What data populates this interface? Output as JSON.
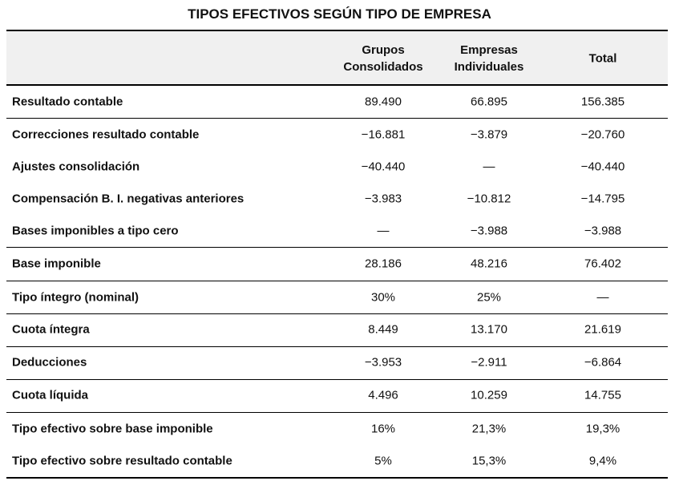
{
  "title": "TIPOS EFECTIVOS SEGÚN TIPO DE EMPRESA",
  "table": {
    "columns": [
      "Grupos Consolidados",
      "Empresas Individuales",
      "Total"
    ],
    "rows": [
      [
        "Resultado contable",
        "89.490",
        "66.895",
        "156.385"
      ],
      [
        "Correcciones resultado contable",
        "−16.881",
        "−3.879",
        "−20.760"
      ],
      [
        "Ajustes consolidación",
        "−40.440",
        "—",
        "−40.440"
      ],
      [
        "Compensación B. I. negativas anteriores",
        "−3.983",
        "−10.812",
        "−14.795"
      ],
      [
        "Bases imponibles a tipo cero",
        "—",
        "−3.988",
        "−3.988"
      ],
      [
        "Base imponible",
        "28.186",
        "48.216",
        "76.402"
      ],
      [
        "Tipo íntegro (nominal)",
        "30%",
        "25%",
        "—"
      ],
      [
        "Cuota íntegra",
        "8.449",
        "13.170",
        "21.619"
      ],
      [
        "Deducciones",
        "−3.953",
        "−2.911",
        "−6.864"
      ],
      [
        "Cuota líquida",
        "4.496",
        "10.259",
        "14.755"
      ],
      [
        "Tipo efectivo sobre base imponible",
        "16%",
        "21,3%",
        "19,3%"
      ],
      [
        "Tipo efectivo sobre resultado contable",
        "5%",
        "15,3%",
        "9,4%"
      ]
    ]
  }
}
